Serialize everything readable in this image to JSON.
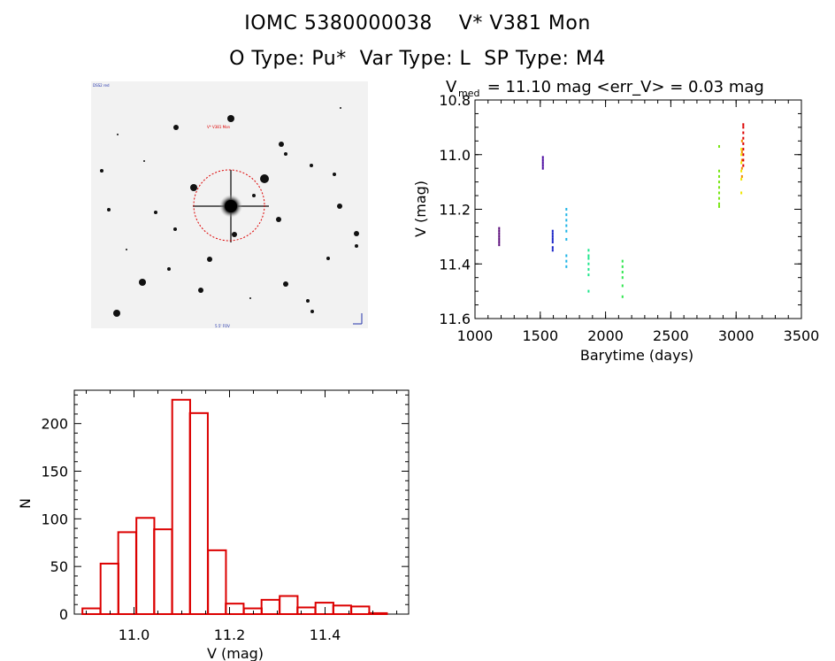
{
  "header": {
    "title_line1": "IOMC 5380000038    V* V381 Mon",
    "title_line2": "O Type: Pu*  Var Type: L  SP Type: M4"
  },
  "finder_image": {
    "label_top_left": "DSS2 red",
    "target_label": "V* V381 Mon",
    "bottom_label": "5.5' FOV",
    "star_color": "#000000",
    "circle_color": "#dd0000"
  },
  "chart_data": [
    {
      "type": "scatter",
      "title_prefix": "V",
      "title_sub": "med",
      "title_rest": " = 11.10 mag <err_V> = 0.03 mag",
      "xlabel": "Barytime (days)",
      "ylabel": "V (mag)",
      "xlim": [
        1000,
        3500
      ],
      "ylim": [
        11.6,
        10.8
      ],
      "y_inverted": true,
      "xticks": [
        "1000",
        "1500",
        "2000",
        "2500",
        "3000",
        "3500"
      ],
      "yticks": [
        "10.8",
        "11.0",
        "11.2",
        "11.4",
        "11.6"
      ],
      "xtick_values": [
        1000,
        1500,
        2000,
        2500,
        3000,
        3500
      ],
      "ytick_values": [
        10.8,
        11.0,
        11.2,
        11.4,
        11.6
      ],
      "groups": [
        {
          "x": 1185,
          "y": [
            11.27,
            11.28,
            11.29,
            11.3,
            11.31,
            11.32,
            11.33
          ],
          "color": "#5a0a7a"
        },
        {
          "x": 1520,
          "y": [
            11.01,
            11.02,
            11.03,
            11.04,
            11.05
          ],
          "color": "#4b0aa0"
        },
        {
          "x": 1595,
          "y": [
            11.28,
            11.29,
            11.3,
            11.31,
            11.32,
            11.34,
            11.35
          ],
          "color": "#1e28c8"
        },
        {
          "x": 1700,
          "y": [
            11.2,
            11.22,
            11.24,
            11.26,
            11.28,
            11.31,
            11.37,
            11.39,
            11.41
          ],
          "color": "#1eb4e6"
        },
        {
          "x": 1870,
          "y": [
            11.35,
            11.37,
            11.38,
            11.4,
            11.42,
            11.44,
            11.5
          ],
          "color": "#1ee68c"
        },
        {
          "x": 2130,
          "y": [
            11.39,
            11.41,
            11.43,
            11.45,
            11.48,
            11.52
          ],
          "color": "#32e650"
        },
        {
          "x": 2870,
          "y": [
            10.97,
            11.06,
            11.08,
            11.1,
            11.12,
            11.14,
            11.16,
            11.18,
            11.19
          ],
          "color": "#78e614"
        },
        {
          "x": 3040,
          "y": [
            10.98,
            11.0,
            11.03,
            11.06,
            11.09,
            11.14
          ],
          "color": "#f0e600"
        },
        {
          "x": 3045,
          "y": [
            10.95,
            10.99,
            11.02,
            11.05,
            11.08
          ],
          "color": "#f08c00"
        },
        {
          "x": 3055,
          "y": [
            10.89,
            10.9,
            10.92,
            10.94,
            10.96,
            10.98,
            11.0,
            11.02,
            11.04
          ],
          "color": "#dc0000"
        }
      ]
    },
    {
      "type": "bar",
      "xlabel": "V (mag)",
      "ylabel": "N",
      "xlim": [
        10.875,
        11.575
      ],
      "ylim": [
        0,
        235
      ],
      "xticks": [
        "11.0",
        "11.2",
        "11.4"
      ],
      "yticks": [
        "0",
        "50",
        "100",
        "150",
        "200"
      ],
      "xtick_values": [
        11.0,
        11.2,
        11.4
      ],
      "ytick_values": [
        0,
        50,
        100,
        150,
        200
      ],
      "bin_width": 0.0375,
      "bin_starts": [
        10.892,
        10.93,
        10.967,
        11.005,
        11.042,
        11.08,
        11.117,
        11.155,
        11.192,
        11.23,
        11.267,
        11.305,
        11.342,
        11.38,
        11.417,
        11.455,
        11.492
      ],
      "values": [
        6,
        53,
        86,
        101,
        89,
        225,
        211,
        67,
        11,
        6,
        15,
        19,
        7,
        12,
        9,
        8,
        1
      ],
      "color": "#dc0000"
    }
  ]
}
